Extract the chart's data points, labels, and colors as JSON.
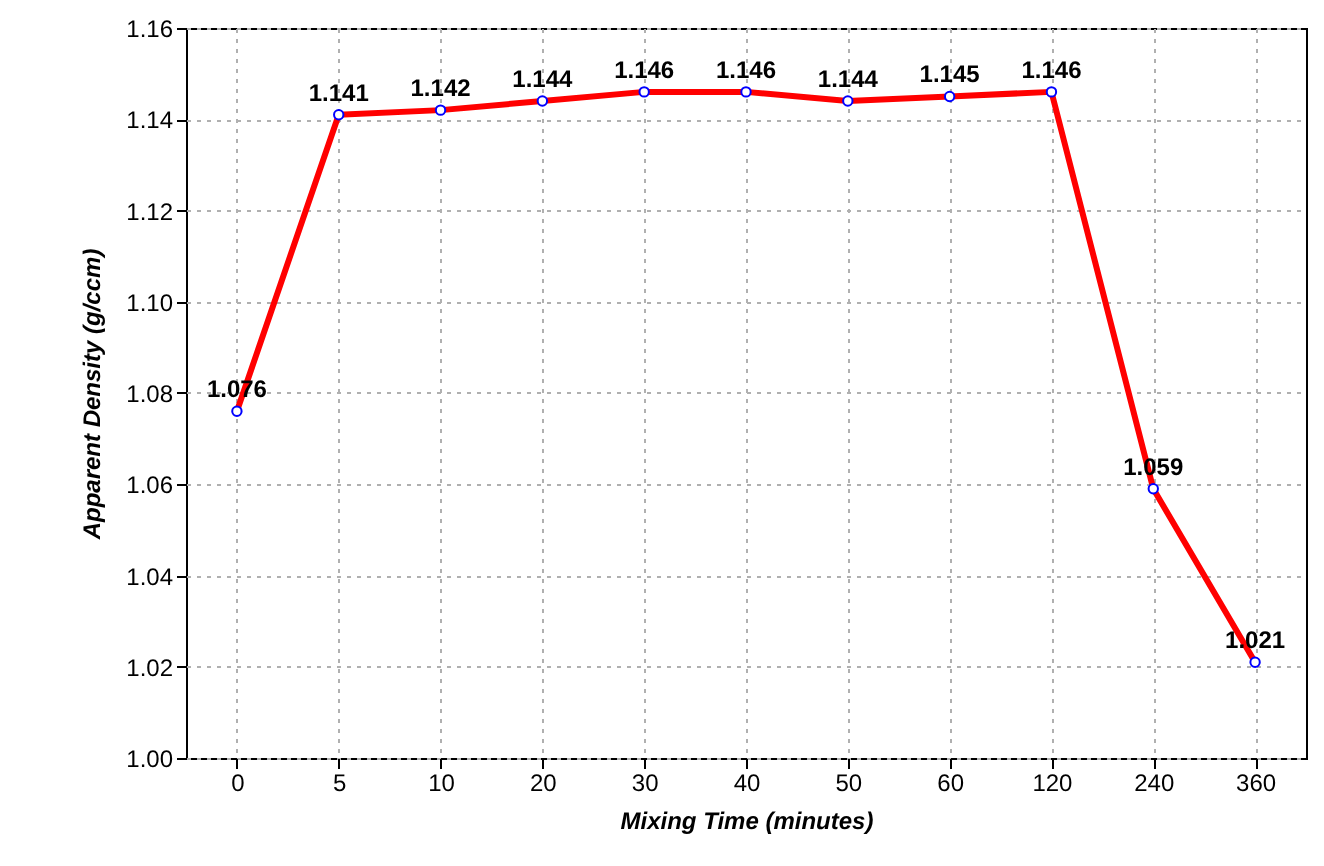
{
  "chart_data": {
    "type": "line",
    "xlabel": "Mixing Time (minutes)",
    "ylabel": "Apparent Density (g/ccm)",
    "categories": [
      "0",
      "5",
      "10",
      "20",
      "30",
      "40",
      "50",
      "60",
      "120",
      "240",
      "360"
    ],
    "values": [
      1.076,
      1.141,
      1.142,
      1.144,
      1.146,
      1.146,
      1.144,
      1.145,
      1.146,
      1.059,
      1.021
    ],
    "color": "#ff0000",
    "marker": "circle",
    "data_labels": true,
    "grid": true,
    "ylim": [
      1.0,
      1.16
    ],
    "yticks": [
      {
        "value": 1.0,
        "label": "1.00"
      },
      {
        "value": 1.02,
        "label": "1.02"
      },
      {
        "value": 1.04,
        "label": "1.04"
      },
      {
        "value": 1.06,
        "label": "1.06"
      },
      {
        "value": 1.08,
        "label": "1.08"
      },
      {
        "value": 1.1,
        "label": "1.10"
      },
      {
        "value": 1.12,
        "label": "1.12"
      },
      {
        "value": 1.14,
        "label": "1.14"
      },
      {
        "value": 1.16,
        "label": "1.16"
      }
    ]
  }
}
